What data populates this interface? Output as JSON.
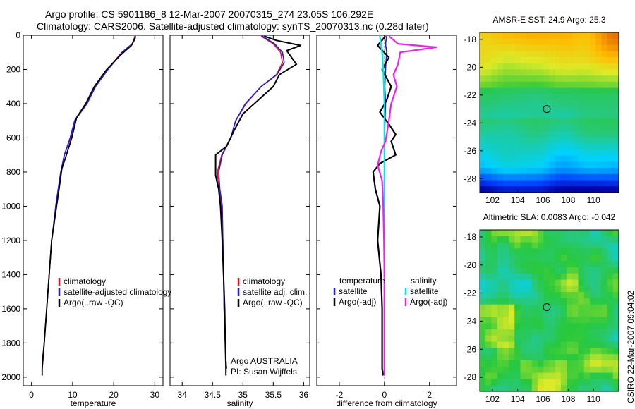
{
  "figure": {
    "title_line1": "Argo profile: CS 5901186_8 12-Mar-2007 20070315_274 23.05S 106.292E",
    "title_line2": "Climatology: CARS2006. Satellite-adjusted climatology: synTS_20070313.nc (0.28d later)",
    "credit": "CSIRO 22-Mar-2007 09:04:02",
    "argo_label": "Argo AUSTRALIA",
    "pi_label": "PI: Susan Wijffels"
  },
  "colors": {
    "climatology": "#e0141e",
    "satellite": "#1d1dde",
    "argo": "#000000",
    "sal_satellite": "#00e5e5",
    "sal_argo": "#ee22ee"
  },
  "chart_data": [
    {
      "type": "line",
      "xlabel": "temperature",
      "ylabel": "",
      "xlim": [
        -2,
        32
      ],
      "ylim": [
        2050,
        0
      ],
      "xticks": [
        0,
        10,
        20,
        30
      ],
      "xtick_labels": [
        "0",
        "10",
        "20",
        "30"
      ],
      "yticks": [
        0,
        200,
        400,
        600,
        800,
        1000,
        1200,
        1400,
        1600,
        1800,
        2000
      ],
      "ytick_labels": [
        "0",
        "200",
        "400",
        "600",
        "800",
        "1000",
        "1200",
        "1400",
        "1600",
        "1800",
        "2000"
      ],
      "legend": [
        "climatology",
        "satellite-adjusted climatology",
        "Argo(..raw -QC)"
      ],
      "legend_position": "lower-center",
      "series": [
        {
          "name": "climatology",
          "x": [
            25.2,
            24.5,
            22,
            18.5,
            15.5,
            13.5,
            10.5,
            9.5,
            8,
            7.2,
            6.5,
            5.9,
            5.5,
            4.9,
            4.3,
            3.7,
            3.1,
            2.8,
            2.6
          ],
          "y": [
            5,
            50,
            100,
            200,
            300,
            400,
            500,
            600,
            700,
            800,
            900,
            1000,
            1100,
            1200,
            1400,
            1600,
            1800,
            1900,
            1950
          ]
        },
        {
          "name": "satellite-adjusted climatology",
          "x": [
            25.3,
            24.6,
            22.1,
            18.6,
            15.6,
            13.5,
            10.5,
            9.4,
            8,
            7.1,
            6.5,
            5.9,
            5.4,
            4.9,
            4.3,
            3.7,
            3.1,
            2.8,
            2.6
          ],
          "y": [
            5,
            50,
            100,
            200,
            300,
            400,
            500,
            600,
            700,
            800,
            900,
            1000,
            1100,
            1200,
            1400,
            1600,
            1800,
            1900,
            1950
          ]
        },
        {
          "name": "Argo(..raw -QC)",
          "x": [
            25.3,
            25.2,
            24.3,
            21.5,
            18.3,
            15.3,
            13.2,
            11,
            9.8,
            8.5,
            7.4,
            6.7,
            6.1,
            5.5,
            4.9,
            4.3,
            3.7,
            3.1,
            2.7,
            2.6,
            2.6
          ],
          "y": [
            5,
            20,
            60,
            120,
            200,
            300,
            400,
            480,
            600,
            700,
            780,
            900,
            1000,
            1100,
            1200,
            1400,
            1600,
            1800,
            1900,
            1950,
            1990
          ]
        }
      ]
    },
    {
      "type": "line",
      "xlabel": "salinity",
      "ylabel": "",
      "xlim": [
        33.8,
        36.1
      ],
      "ylim": [
        2050,
        0
      ],
      "xticks": [
        34,
        34.5,
        35,
        35.5,
        36
      ],
      "xtick_labels": [
        "34",
        "34.5",
        "35",
        "35.5",
        "36"
      ],
      "legend": [
        "climatology",
        "satellite adj. clim.",
        "Argo(..raw -QC)"
      ],
      "legend_position": "lower-right",
      "series": [
        {
          "name": "climatology",
          "x": [
            35.3,
            35.5,
            35.62,
            35.65,
            35.55,
            35.3,
            35.05,
            34.88,
            34.8,
            34.65,
            34.58,
            34.6,
            34.65,
            34.67,
            34.68,
            34.69,
            34.71,
            34.72,
            34.73
          ],
          "y": [
            5,
            50,
            100,
            160,
            230,
            300,
            400,
            500,
            600,
            700,
            800,
            900,
            1000,
            1200,
            1400,
            1600,
            1800,
            1900,
            1950
          ]
        },
        {
          "name": "satellite adj. clim.",
          "x": [
            35.32,
            35.52,
            35.65,
            35.68,
            35.56,
            35.3,
            35.04,
            34.88,
            34.8,
            34.66,
            34.6,
            34.62,
            34.66,
            34.67,
            34.68,
            34.69,
            34.71,
            34.72,
            34.73
          ],
          "y": [
            5,
            50,
            100,
            160,
            230,
            300,
            400,
            500,
            600,
            700,
            800,
            900,
            1000,
            1200,
            1400,
            1600,
            1800,
            1900,
            1950
          ]
        },
        {
          "name": "Argo(..raw -QC)",
          "x": [
            35.35,
            35.55,
            35.95,
            35.72,
            35.88,
            35.6,
            35.5,
            35.25,
            35.0,
            34.85,
            34.73,
            34.55,
            34.55,
            34.6,
            34.63,
            34.66,
            34.68,
            34.7,
            34.71,
            34.72,
            34.72
          ],
          "y": [
            5,
            30,
            60,
            90,
            170,
            230,
            300,
            380,
            460,
            560,
            650,
            700,
            820,
            900,
            1000,
            1200,
            1400,
            1600,
            1800,
            1950,
            1990
          ]
        }
      ]
    },
    {
      "type": "line",
      "xlabel": "difference from climatology",
      "ylabel": "",
      "xlim": [
        -3,
        3.2
      ],
      "ylim": [
        2050,
        0
      ],
      "xticks": [
        -2,
        0,
        2
      ],
      "xtick_labels": [
        "-2",
        "0",
        "2"
      ],
      "legend": [
        "temperature",
        "satellite",
        "Argo(-adj)",
        "salinity",
        "satellite",
        "Argo(-adj)"
      ],
      "legend_position": "lower-center",
      "series": [
        {
          "name": "temperature satellite",
          "x": [
            0.1,
            0.05,
            0.1,
            0.05,
            0.02,
            0.05,
            0,
            0.02,
            0,
            0,
            0,
            0,
            0
          ],
          "y": [
            5,
            50,
            100,
            200,
            300,
            400,
            600,
            800,
            1000,
            1200,
            1500,
            1800,
            1950
          ]
        },
        {
          "name": "temperature Argo(-adj)",
          "x": [
            0.05,
            -0.3,
            0.2,
            -0.1,
            0.3,
            0.1,
            -0.2,
            0.2,
            0.5,
            0.3,
            0.5,
            -0.2,
            -0.5,
            -0.4,
            -0.2,
            -0.3,
            -0.15,
            -0.1,
            -0.1,
            -0.1,
            -0.05
          ],
          "y": [
            5,
            60,
            130,
            200,
            300,
            380,
            450,
            520,
            580,
            620,
            700,
            750,
            800,
            900,
            1000,
            1200,
            1400,
            1600,
            1800,
            1950,
            1990
          ]
        },
        {
          "name": "salinity satellite",
          "x": [
            -0.2,
            -0.1,
            -0.05,
            0,
            0,
            0,
            0,
            0,
            0,
            0
          ],
          "y": [
            5,
            100,
            200,
            400,
            600,
            800,
            1000,
            1400,
            1700,
            1990
          ]
        },
        {
          "name": "salinity Argo(-adj)",
          "x": [
            0.2,
            0.6,
            2.3,
            0.7,
            0.6,
            0.4,
            0.55,
            0.3,
            0.2,
            0.05,
            -0.15,
            -0.3,
            -0.1,
            -0.05,
            -0.02,
            0,
            0,
            0
          ],
          "y": [
            5,
            50,
            70,
            100,
            170,
            230,
            300,
            400,
            500,
            620,
            680,
            760,
            850,
            1000,
            1200,
            1400,
            1700,
            1990
          ]
        }
      ]
    },
    {
      "type": "heatmap",
      "title": "AMSR-E SST: 24.9 Argo: 25.3",
      "xlim": [
        101,
        112
      ],
      "ylim": [
        -29,
        -17.5
      ],
      "xticks": [
        102,
        104,
        106,
        108,
        110
      ],
      "xtick_labels": [
        "102",
        "104",
        "106",
        "108",
        "110"
      ],
      "yticks": [
        -18,
        -20,
        -22,
        -24,
        -26,
        -28
      ],
      "ytick_labels": [
        "-18",
        "-20",
        "-22",
        "-24",
        "-26",
        "-28"
      ],
      "marker": {
        "lon": 106.3,
        "lat": -23
      }
    },
    {
      "type": "heatmap",
      "title": "Altimetric SLA: 0.0083 Argo: -0.042",
      "xlim": [
        101,
        112
      ],
      "ylim": [
        -29,
        -17.5
      ],
      "xticks": [
        102,
        104,
        106,
        108,
        110
      ],
      "xtick_labels": [
        "102",
        "104",
        "106",
        "108",
        "110"
      ],
      "yticks": [
        -18,
        -20,
        -22,
        -24,
        -26,
        -28
      ],
      "ytick_labels": [
        "-18",
        "-20",
        "-22",
        "-24",
        "-26",
        "-28"
      ],
      "marker": {
        "lon": 106.3,
        "lat": -23
      }
    }
  ]
}
